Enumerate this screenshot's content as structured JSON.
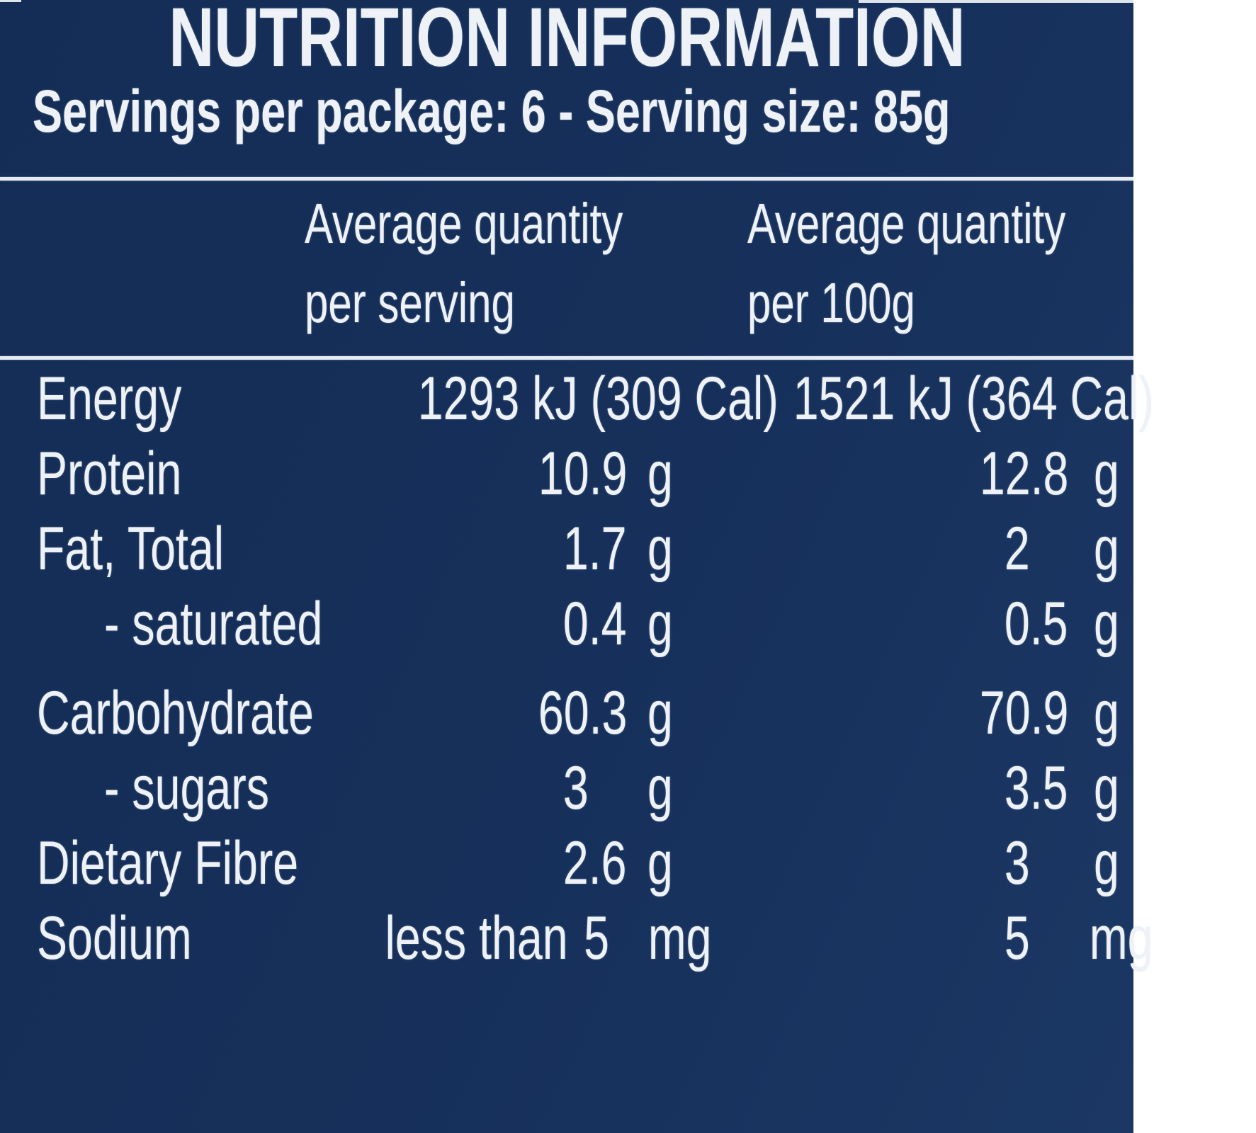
{
  "panel": {
    "title": "NUTRITION INFORMATION",
    "serving_line": "Servings per package: 6 - Serving size: 85g",
    "columns": {
      "per_serving": {
        "line1": "Average quantity",
        "line2": "per serving"
      },
      "per_100g": {
        "line1": "Average quantity",
        "line2": "per 100g"
      }
    },
    "rows": [
      {
        "label": "Energy",
        "per_serving": "1293 kJ (309 Cal)",
        "per_100g": "1521 kJ (364 Cal)"
      },
      {
        "label": "Protein",
        "per_serving": "10.9",
        "unit_serving": "g",
        "per_100g": "12.8",
        "unit_100g": "g"
      },
      {
        "label": "Fat, Total",
        "per_serving": "1.7",
        "unit_serving": "g",
        "per_100g": "2",
        "unit_100g": "g"
      },
      {
        "label": "- saturated",
        "per_serving": "0.4",
        "unit_serving": "g",
        "per_100g": "0.5",
        "unit_100g": "g"
      },
      {
        "label": "Carbohydrate",
        "per_serving": "60.3",
        "unit_serving": "g",
        "per_100g": "70.9",
        "unit_100g": "g"
      },
      {
        "label": "- sugars",
        "per_serving": "3",
        "unit_serving": "g",
        "per_100g": "3.5",
        "unit_100g": "g"
      },
      {
        "label": "Dietary Fibre",
        "per_serving": "2.6",
        "unit_serving": "g",
        "per_100g": "3",
        "unit_100g": "g"
      },
      {
        "label": "Sodium",
        "qualifier": "less than",
        "per_serving": "5",
        "unit_serving": "mg",
        "per_100g": "5",
        "unit_100g": "mg"
      }
    ],
    "colors": {
      "background": "#16305b",
      "text": "#eef2f7",
      "rule": "#e6ebf2"
    }
  }
}
